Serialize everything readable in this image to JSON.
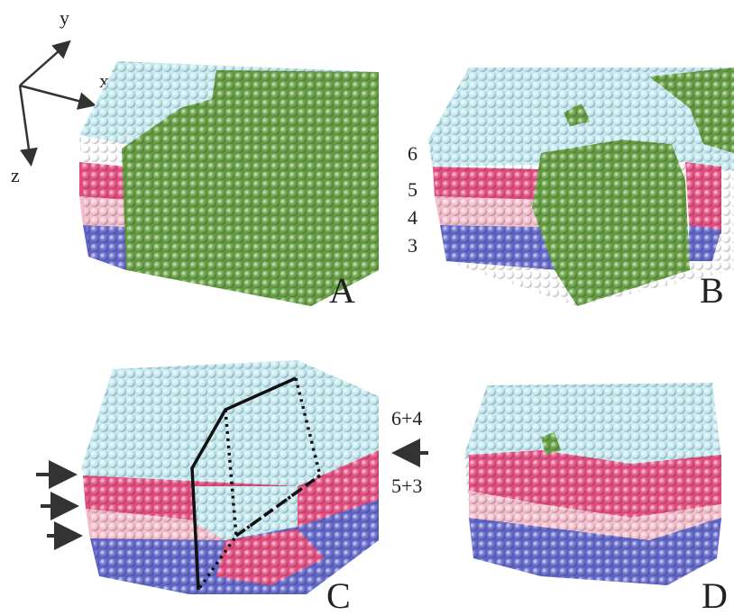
{
  "axes": {
    "x": "x",
    "y": "y",
    "z": "z"
  },
  "panels": [
    {
      "label": "A"
    },
    {
      "label": "B",
      "layer_labels": [
        "6",
        "5",
        "4",
        "3"
      ]
    },
    {
      "label": "C",
      "layer_labels": [
        "6+4",
        "5+3"
      ]
    },
    {
      "label": "D"
    }
  ]
}
